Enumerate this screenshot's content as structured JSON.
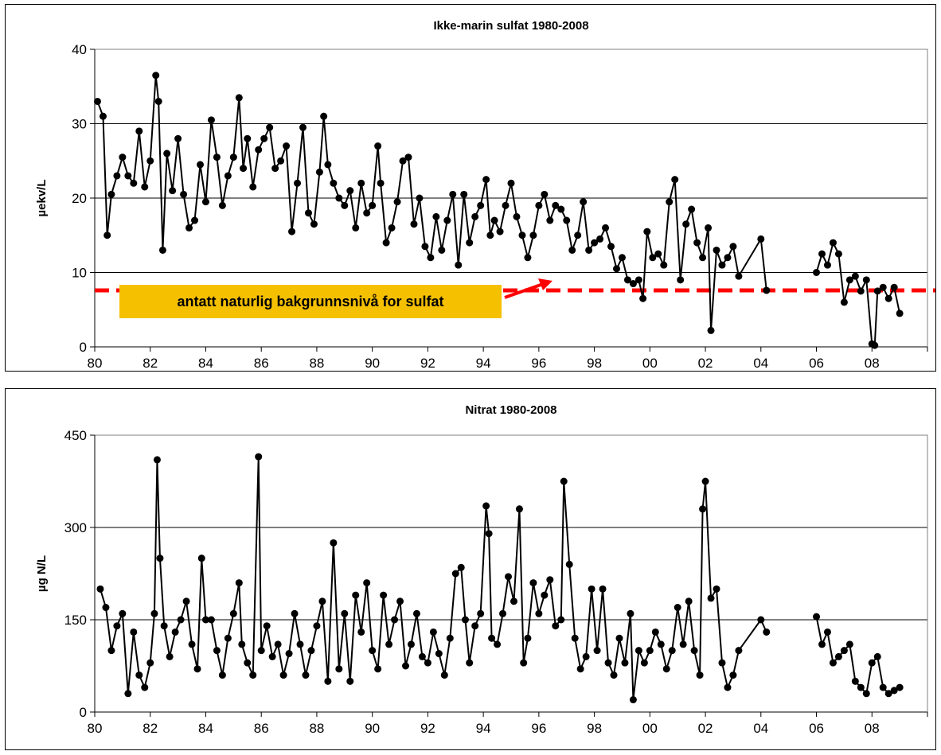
{
  "chart_data": [
    {
      "type": "line",
      "title": "Ikke-marin sulfat 1980-2008",
      "ylabel": "µekv/L",
      "xlabel": "",
      "ylim": [
        0,
        40
      ],
      "xlim": [
        1980,
        2010
      ],
      "yticks": [
        0,
        10,
        20,
        30,
        40
      ],
      "xtick_labels": [
        "80",
        "82",
        "84",
        "86",
        "88",
        "90",
        "92",
        "94",
        "96",
        "98",
        "00",
        "02",
        "04",
        "06",
        "08"
      ],
      "grid": "horizontal",
      "reference_line": {
        "y": 7.6,
        "color": "#ff0000",
        "style": "dashed"
      },
      "annotation": "antatt naturlig bakgrunnsnivå for sulfat",
      "marker_color": "#000000",
      "series": [
        {
          "x": [
            1980.1,
            1980.3,
            1980.45,
            1980.6,
            1980.8,
            1981.0,
            1981.2,
            1981.4,
            1981.6,
            1981.8,
            1982.0,
            1982.2,
            1982.3,
            1982.45,
            1982.6,
            1982.8,
            1983.0,
            1983.2,
            1983.4,
            1983.6,
            1983.8,
            1984.0,
            1984.2,
            1984.4,
            1984.6,
            1984.8,
            1985.0,
            1985.2,
            1985.35,
            1985.5,
            1985.7,
            1985.9,
            1986.1,
            1986.3,
            1986.5,
            1986.7,
            1986.9,
            1987.1,
            1987.3,
            1987.5,
            1987.7,
            1987.9,
            1988.1,
            1988.25,
            1988.4,
            1988.6,
            1988.8,
            1989.0,
            1989.2,
            1989.4,
            1989.6,
            1989.8,
            1990.0,
            1990.2,
            1990.3,
            1990.5,
            1990.7,
            1990.9,
            1991.1,
            1991.3,
            1991.5,
            1991.7,
            1991.9,
            1992.1,
            1992.3,
            1992.5,
            1992.7,
            1992.9,
            1993.1,
            1993.3,
            1993.5,
            1993.7,
            1993.9,
            1994.1,
            1994.25,
            1994.4,
            1994.6,
            1994.8,
            1995.0,
            1995.2,
            1995.4,
            1995.6,
            1995.8,
            1996.0,
            1996.2,
            1996.4,
            1996.6,
            1996.8,
            1997.0,
            1997.2,
            1997.4,
            1997.6,
            1997.8,
            1998.0,
            1998.2,
            1998.4,
            1998.6,
            1998.8,
            1999.0,
            1999.2,
            1999.4,
            1999.6,
            1999.75,
            1999.9,
            2000.1,
            2000.3,
            2000.5,
            2000.7,
            2000.9,
            2001.1,
            2001.3,
            2001.5,
            2001.7,
            2001.9,
            2002.1,
            2002.2,
            2002.4,
            2002.6,
            2002.8,
            2003.0,
            2003.2,
            2004.0,
            2004.2,
            2006.0,
            2006.2,
            2006.4,
            2006.6,
            2006.8,
            2007.0,
            2007.2,
            2007.4,
            2007.6,
            2007.8,
            2008.0,
            2008.1,
            2008.2,
            2008.4,
            2008.6,
            2008.8,
            2009.0
          ],
          "y": [
            33,
            31,
            15,
            20.5,
            23,
            25.5,
            23,
            22,
            29,
            21.5,
            25,
            36.5,
            33,
            13,
            26,
            21,
            28,
            20.5,
            16,
            17,
            24.5,
            19.5,
            30.5,
            25.5,
            19,
            23,
            25.5,
            33.5,
            24,
            28,
            21.5,
            26.5,
            28,
            29.5,
            24,
            25,
            27,
            15.5,
            22,
            29.5,
            18,
            16.5,
            23.5,
            31,
            24.5,
            22,
            20,
            19,
            21,
            16,
            22,
            18,
            19,
            27,
            22,
            14,
            16,
            19.5,
            25,
            25.5,
            16.5,
            20,
            13.5,
            12,
            17.5,
            13,
            17,
            20.5,
            11,
            20.5,
            14,
            17.5,
            19,
            22.5,
            15,
            17,
            15.5,
            19,
            22,
            17.5,
            15,
            12,
            15,
            19,
            20.5,
            17,
            19,
            18.5,
            17,
            13,
            15,
            19.5,
            13,
            14,
            14.5,
            16,
            13.5,
            10.5,
            12,
            9,
            8.5,
            9,
            6.5,
            15.5,
            12,
            12.5,
            11,
            19.5,
            22.5,
            9,
            16.5,
            18.5,
            14,
            12,
            16,
            2.2,
            13,
            11,
            12,
            13.5,
            9.5,
            14.5,
            7.6,
            10,
            12.5,
            11,
            14,
            12.5,
            6,
            9,
            9.5,
            7.5,
            9,
            0.4,
            0.2,
            7.5,
            8,
            6.5,
            8,
            4.5
          ]
        }
      ]
    },
    {
      "type": "line",
      "title": "Nitrat 1980-2008",
      "ylabel": "µg N/L",
      "xlabel": "",
      "ylim": [
        0,
        450
      ],
      "xlim": [
        1980,
        2010
      ],
      "yticks": [
        0,
        150,
        300,
        450
      ],
      "xtick_labels": [
        "80",
        "82",
        "84",
        "86",
        "88",
        "90",
        "92",
        "94",
        "96",
        "98",
        "00",
        "02",
        "04",
        "06",
        "08"
      ],
      "grid": "horizontal",
      "marker_color": "#000000",
      "series": [
        {
          "x": [
            1980.2,
            1980.4,
            1980.6,
            1980.8,
            1981.0,
            1981.2,
            1981.4,
            1981.6,
            1981.8,
            1982.0,
            1982.15,
            1982.25,
            1982.35,
            1982.5,
            1982.7,
            1982.9,
            1983.1,
            1983.3,
            1983.5,
            1983.7,
            1983.85,
            1984.0,
            1984.2,
            1984.4,
            1984.6,
            1984.8,
            1985.0,
            1985.2,
            1985.3,
            1985.5,
            1985.7,
            1985.9,
            1986.0,
            1986.2,
            1986.4,
            1986.6,
            1986.8,
            1987.0,
            1987.2,
            1987.4,
            1987.6,
            1987.8,
            1988.0,
            1988.2,
            1988.4,
            1988.6,
            1988.8,
            1989.0,
            1989.2,
            1989.4,
            1989.6,
            1989.8,
            1990.0,
            1990.2,
            1990.4,
            1990.6,
            1990.8,
            1991.0,
            1991.2,
            1991.4,
            1991.6,
            1991.8,
            1992.0,
            1992.2,
            1992.4,
            1992.6,
            1992.8,
            1993.0,
            1993.2,
            1993.35,
            1993.5,
            1993.7,
            1993.9,
            1994.1,
            1994.2,
            1994.3,
            1994.5,
            1994.7,
            1994.9,
            1995.1,
            1995.3,
            1995.45,
            1995.6,
            1995.8,
            1996.0,
            1996.2,
            1996.4,
            1996.6,
            1996.8,
            1996.9,
            1997.1,
            1997.3,
            1997.5,
            1997.7,
            1997.9,
            1998.1,
            1998.3,
            1998.5,
            1998.7,
            1998.9,
            1999.1,
            1999.3,
            1999.4,
            1999.6,
            1999.8,
            2000.0,
            2000.2,
            2000.4,
            2000.6,
            2000.8,
            2001.0,
            2001.2,
            2001.4,
            2001.6,
            2001.8,
            2001.9,
            2002.0,
            2002.2,
            2002.4,
            2002.6,
            2002.8,
            2003.0,
            2003.2,
            2004.0,
            2004.2,
            2006.0,
            2006.2,
            2006.4,
            2006.6,
            2006.8,
            2007.0,
            2007.2,
            2007.4,
            2007.6,
            2007.8,
            2008.0,
            2008.2,
            2008.4,
            2008.6,
            2008.8,
            2009.0
          ],
          "y": [
            200,
            170,
            100,
            140,
            160,
            30,
            130,
            60,
            40,
            80,
            160,
            410,
            250,
            140,
            90,
            130,
            150,
            180,
            110,
            70,
            250,
            150,
            150,
            100,
            60,
            120,
            160,
            210,
            110,
            80,
            60,
            415,
            100,
            140,
            90,
            110,
            60,
            95,
            160,
            110,
            60,
            100,
            140,
            180,
            50,
            275,
            70,
            160,
            50,
            190,
            130,
            210,
            100,
            70,
            190,
            110,
            150,
            180,
            75,
            110,
            160,
            90,
            80,
            130,
            95,
            60,
            120,
            225,
            235,
            150,
            80,
            140,
            160,
            335,
            290,
            120,
            110,
            160,
            220,
            180,
            330,
            80,
            120,
            210,
            160,
            190,
            215,
            140,
            150,
            375,
            240,
            120,
            70,
            90,
            200,
            100,
            200,
            80,
            60,
            120,
            80,
            160,
            20,
            100,
            80,
            100,
            130,
            110,
            70,
            100,
            170,
            110,
            180,
            100,
            60,
            330,
            375,
            185,
            200,
            80,
            40,
            60,
            100,
            150,
            130,
            155,
            110,
            130,
            80,
            90,
            100,
            110,
            50,
            40,
            30,
            80,
            90,
            40,
            30,
            35,
            40
          ]
        }
      ]
    }
  ]
}
